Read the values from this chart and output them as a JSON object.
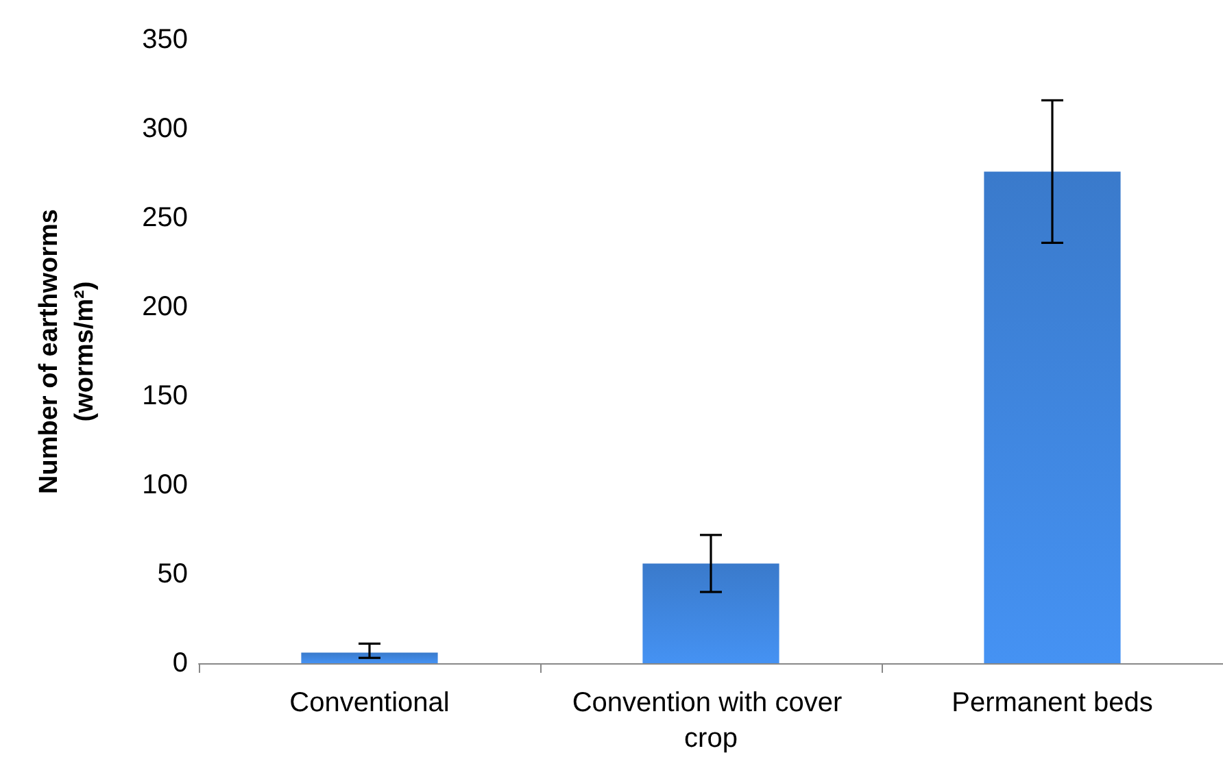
{
  "chart_data": {
    "type": "bar",
    "ylabel": "Number of earthworms\n(worms/m²)",
    "categories": [
      "Conventional",
      "Convention with cover crop",
      "Permanent beds"
    ],
    "values": [
      6,
      56,
      276
    ],
    "errors": [
      [
        3,
        11
      ],
      [
        40,
        72
      ],
      [
        236,
        316
      ]
    ],
    "color": "#3a7acb",
    "ylim": [
      0,
      350
    ],
    "yticks": [
      0,
      50,
      100,
      150,
      200,
      250,
      300,
      350
    ],
    "grid": false
  }
}
